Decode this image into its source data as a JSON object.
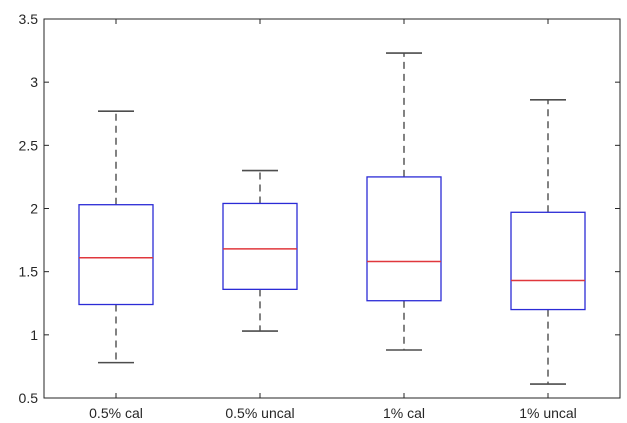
{
  "chart_data": {
    "type": "boxplot",
    "title": "",
    "xlabel": "",
    "ylabel": "",
    "ylim": [
      0.5,
      3.5
    ],
    "yticks": [
      0.5,
      1,
      1.5,
      2,
      2.5,
      3,
      3.5
    ],
    "ytick_labels": [
      "0.5",
      "1",
      "1.5",
      "2",
      "2.5",
      "3",
      "3.5"
    ],
    "grid": false,
    "legend": "none",
    "categories": [
      "0.5% cal",
      "0.5% uncal",
      "1% cal",
      "1% uncal"
    ],
    "boxes": [
      {
        "whisker_low": 0.78,
        "q1": 1.24,
        "median": 1.61,
        "q3": 2.03,
        "whisker_high": 2.77
      },
      {
        "whisker_low": 1.03,
        "q1": 1.36,
        "median": 1.68,
        "q3": 2.04,
        "whisker_high": 2.3
      },
      {
        "whisker_low": 0.88,
        "q1": 1.27,
        "median": 1.58,
        "q3": 2.25,
        "whisker_high": 3.23
      },
      {
        "whisker_low": 0.61,
        "q1": 1.2,
        "median": 1.43,
        "q3": 1.97,
        "whisker_high": 2.86
      }
    ],
    "colors": {
      "box": "#2b2bd6",
      "median": "#e0373c",
      "whisker": "#4d4d4d",
      "axis": "#262626"
    }
  }
}
